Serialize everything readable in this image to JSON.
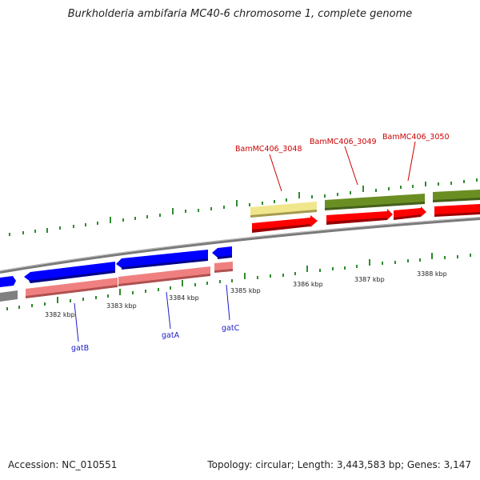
{
  "title": "Burkholderia ambifaria MC40-6 chromosome 1, complete genome",
  "footer": {
    "accession": "Accession: NC_010551",
    "topology": "Topology: circular; Length: 3,443,583 bp; Genes: 3,147"
  },
  "ticks": {
    "labels": [
      "3382 kbp",
      "3383 kbp",
      "3384 kbp",
      "3385 kbp",
      "3386 kbp",
      "3387 kbp",
      "3388 kbp"
    ]
  },
  "genes": {
    "labeled_top": [
      "BamMC406_3048",
      "BamMC406_3049",
      "BamMC406_3050"
    ],
    "labeled_bottom": [
      "gatB",
      "gatA",
      "gatC"
    ]
  },
  "colors": {
    "forward_cds": "#ff0000",
    "forward_gene": "#6b8e23",
    "reverse_cds": "#0000ff",
    "reverse_gene": "#f08080",
    "pseudo_gene": "#f0e68c",
    "backbone": "#808080",
    "tick": "#228b22",
    "top_label": "#cc0000",
    "bottom_label": "#1a1ac8"
  }
}
